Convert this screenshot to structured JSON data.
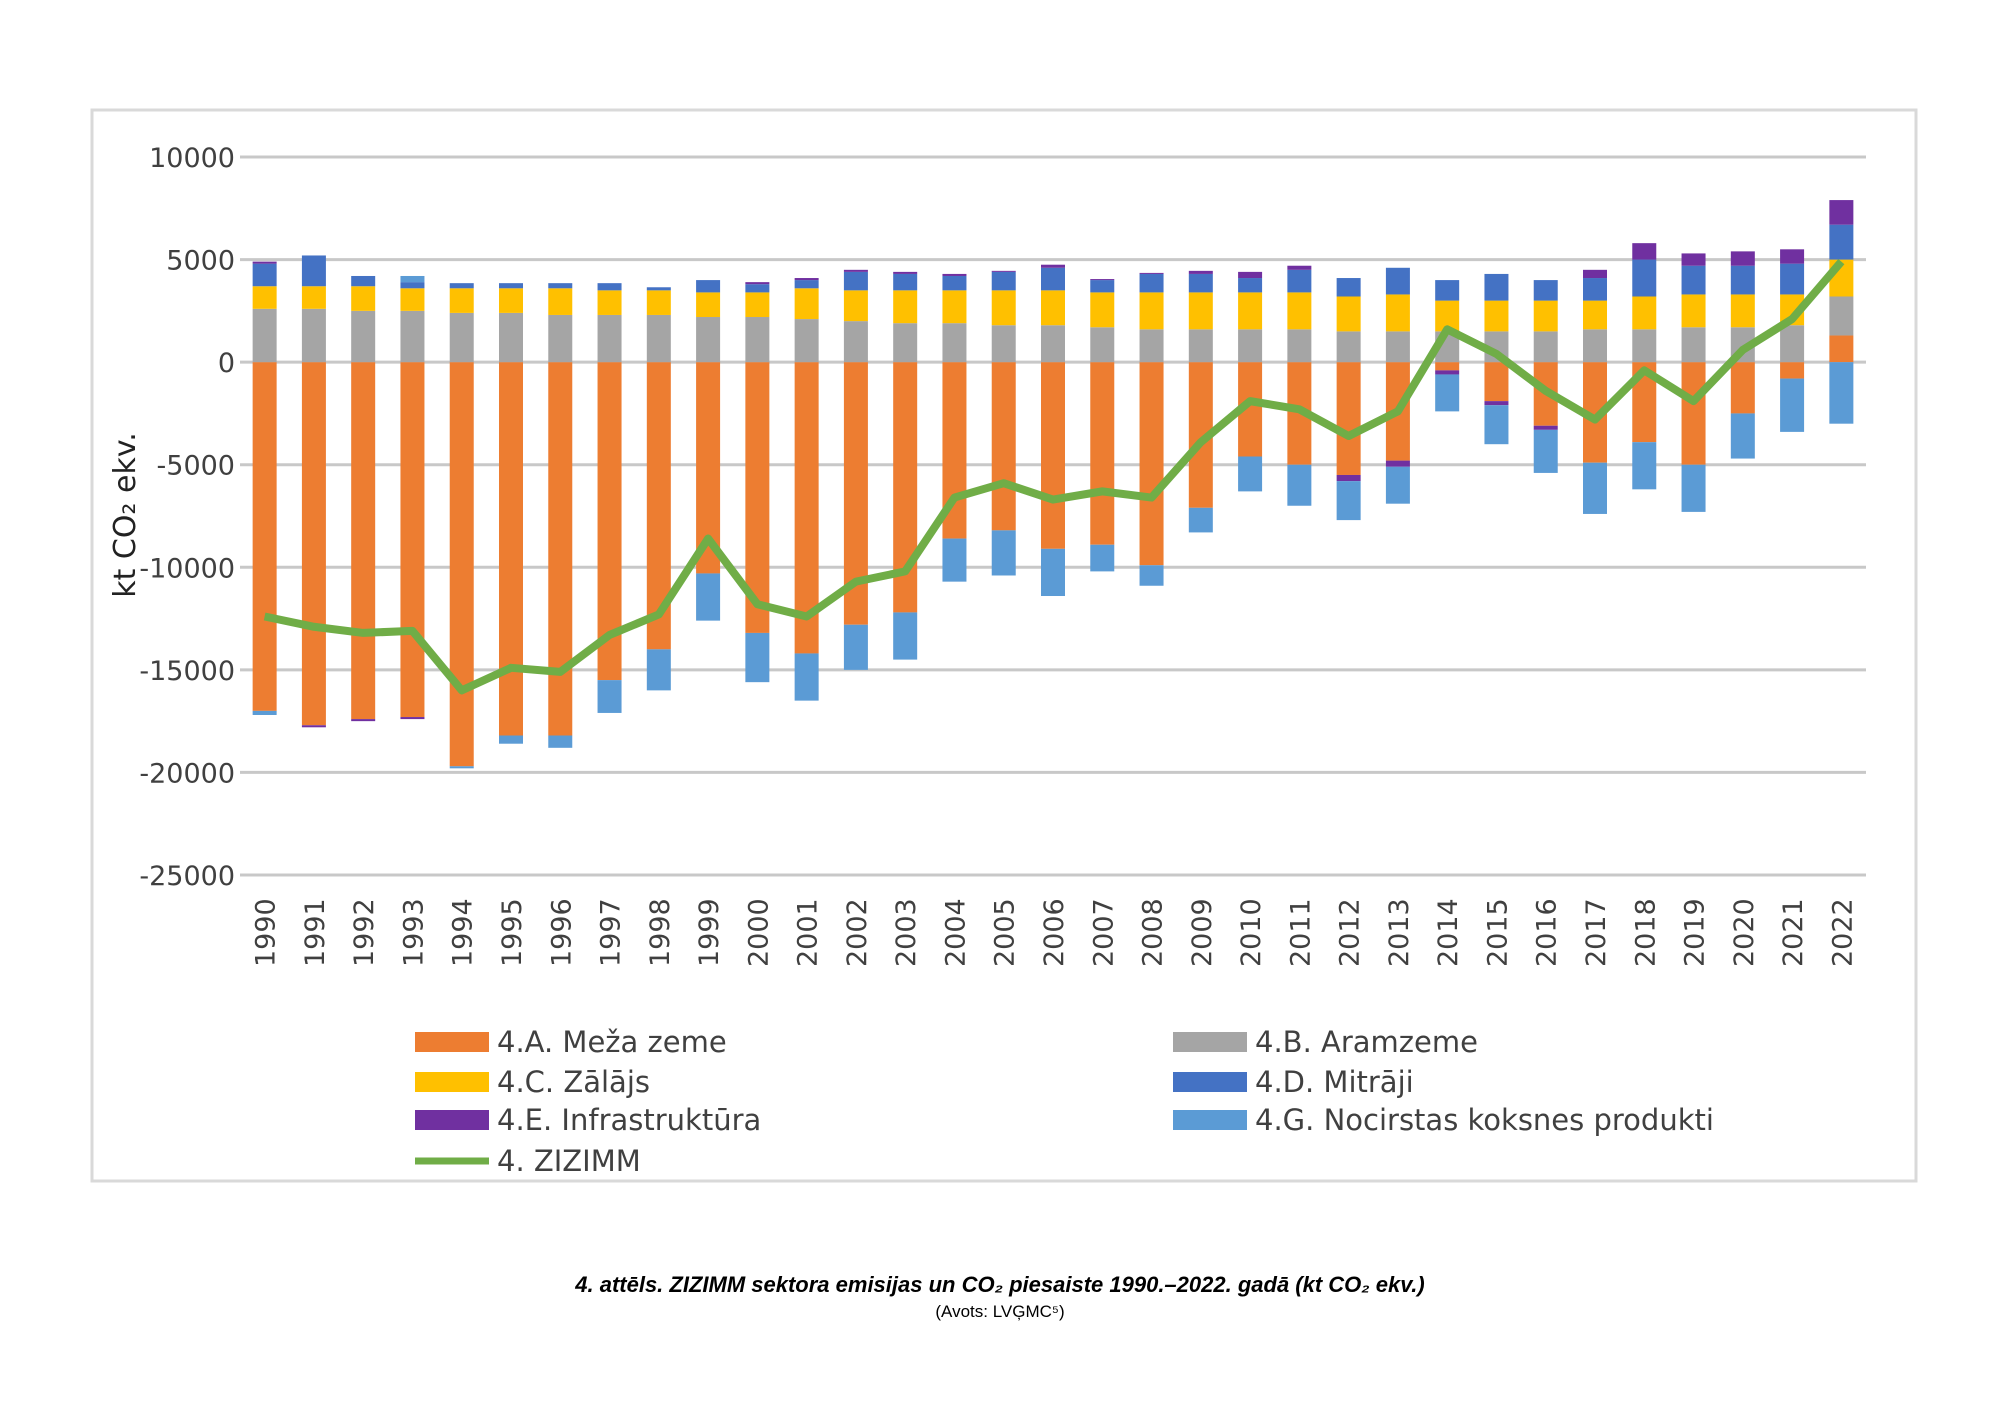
{
  "chart_data": {
    "type": "bar",
    "stacked": true,
    "title": "",
    "xlabel": "",
    "ylabel": "kt CO₂ ekv.",
    "ylim": [
      -25000,
      10000
    ],
    "yticks": [
      10000,
      5000,
      0,
      -5000,
      -10000,
      -15000,
      -20000,
      -25000
    ],
    "grid": true,
    "legend_position": "bottom",
    "categories": [
      "1990",
      "1991",
      "1992",
      "1993",
      "1994",
      "1995",
      "1996",
      "1997",
      "1998",
      "1999",
      "2000",
      "2001",
      "2002",
      "2003",
      "2004",
      "2005",
      "2006",
      "2007",
      "2008",
      "2009",
      "2010",
      "2011",
      "2012",
      "2013",
      "2014",
      "2015",
      "2016",
      "2017",
      "2018",
      "2019",
      "2020",
      "2021",
      "2022"
    ],
    "series": [
      {
        "name": "4.A. Meža zeme",
        "color": "#ED7D31",
        "type": "bar",
        "values": [
          -17000,
          -17700,
          -17400,
          -17300,
          -19700,
          -18200,
          -18200,
          -15500,
          -14000,
          -10300,
          -13200,
          -14200,
          -12800,
          -12200,
          -8600,
          -8200,
          -9100,
          -8900,
          -9900,
          -7100,
          -4600,
          -5000,
          -5500,
          -4800,
          -400,
          -1900,
          -3100,
          -4900,
          -3900,
          -5000,
          -2500,
          -800,
          1300
        ]
      },
      {
        "name": "4.B. Aramzeme",
        "color": "#A5A5A5",
        "type": "bar",
        "values": [
          2600,
          2600,
          2500,
          2500,
          2400,
          2400,
          2300,
          2300,
          2300,
          2200,
          2200,
          2100,
          2000,
          1900,
          1900,
          1800,
          1800,
          1700,
          1600,
          1600,
          1600,
          1600,
          1500,
          1500,
          1500,
          1500,
          1500,
          1600,
          1600,
          1700,
          1700,
          1800,
          1900
        ]
      },
      {
        "name": "4.C. Zālājs",
        "color": "#FFC000",
        "type": "bar",
        "values": [
          1100,
          1100,
          1200,
          1100,
          1200,
          1200,
          1300,
          1200,
          1200,
          1200,
          1200,
          1500,
          1500,
          1600,
          1600,
          1700,
          1700,
          1700,
          1800,
          1800,
          1800,
          1800,
          1700,
          1800,
          1500,
          1500,
          1500,
          1400,
          1600,
          1600,
          1600,
          1500,
          1800
        ]
      },
      {
        "name": "4.D. Mitrāji",
        "color": "#4472C4",
        "type": "bar",
        "values": [
          1100,
          1500,
          500,
          300,
          250,
          250,
          250,
          350,
          150,
          600,
          400,
          400,
          900,
          800,
          700,
          900,
          1100,
          600,
          900,
          900,
          700,
          1100,
          900,
          1300,
          1000,
          1300,
          1000,
          1100,
          1800,
          1400,
          1400,
          1500,
          1700
        ]
      },
      {
        "name": "4.E. Infrastruktūra",
        "color": "#7030A0",
        "type": "bar",
        "values": [
          100,
          -100,
          -100,
          -100,
          0,
          0,
          0,
          0,
          0,
          0,
          100,
          100,
          100,
          100,
          100,
          50,
          150,
          50,
          50,
          150,
          300,
          200,
          -300,
          -300,
          -200,
          -200,
          -200,
          400,
          800,
          600,
          700,
          700,
          1200
        ]
      },
      {
        "name": "4.G. Nocirstas koksnes produkti",
        "color": "#5B9BD5",
        "type": "bar",
        "values": [
          -200,
          0,
          0,
          300,
          -100,
          -400,
          -600,
          -1600,
          -2000,
          -2300,
          -2400,
          -2300,
          -2200,
          -2300,
          -2100,
          -2200,
          -2300,
          -1300,
          -1000,
          -1200,
          -1700,
          -2000,
          -1900,
          -1800,
          -1800,
          -1900,
          -2100,
          -2500,
          -2300,
          -2300,
          -2200,
          -2600,
          -3000
        ]
      },
      {
        "name": "4. ZIZIMM",
        "color": "#70AD47",
        "type": "line",
        "values": [
          -12400,
          -12900,
          -13200,
          -13100,
          -16000,
          -14900,
          -15100,
          -13300,
          -12300,
          -8600,
          -11800,
          -12400,
          -10700,
          -10200,
          -6600,
          -5900,
          -6700,
          -6300,
          -6600,
          -3900,
          -1900,
          -2300,
          -3600,
          -2400,
          1600,
          400,
          -1400,
          -2800,
          -400,
          -1900,
          600,
          2100,
          4900
        ]
      }
    ]
  },
  "caption": "4. attēls. ZIZIMM sektora emisijas un CO₂ piesaiste 1990.–2022. gadā (kt CO₂ ekv.)",
  "source": "(Avots: LVĢMC⁵)"
}
